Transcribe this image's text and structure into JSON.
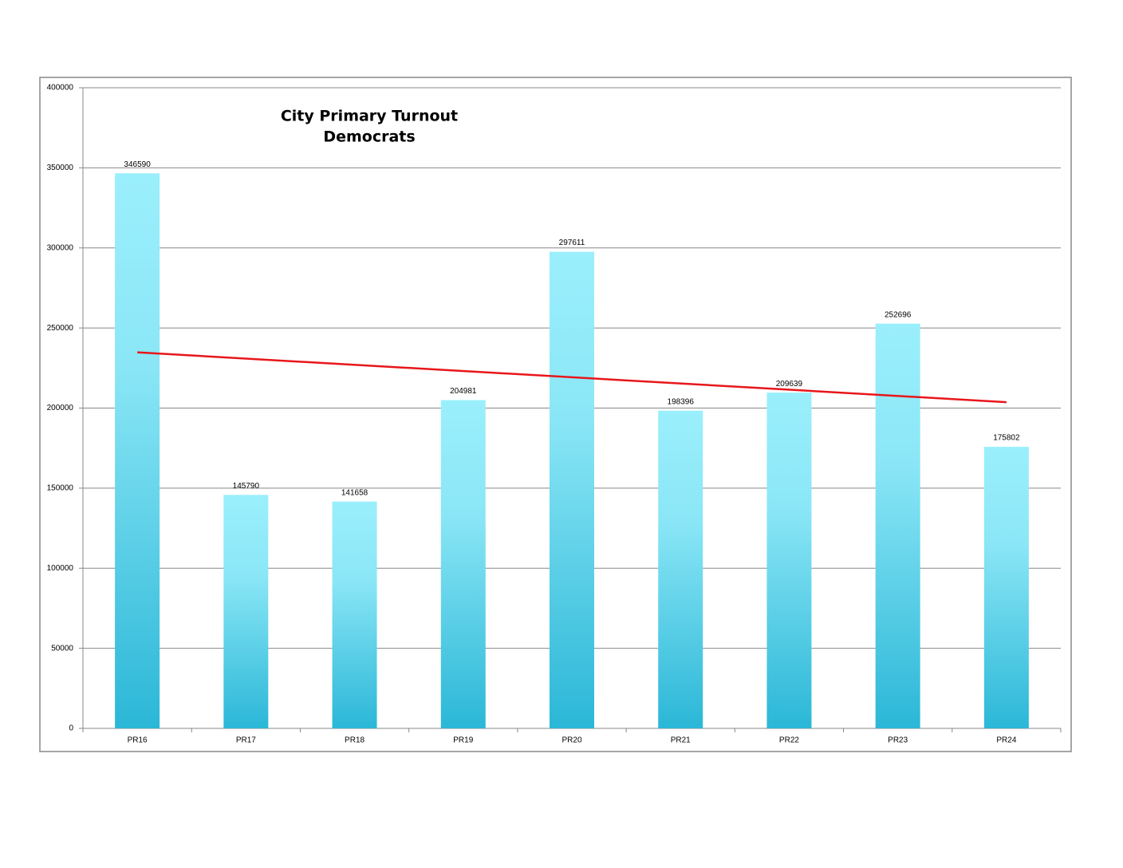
{
  "chart_data": {
    "type": "bar",
    "title": "City Primary Turnout",
    "subtitle": "Democrats",
    "categories": [
      "PR16",
      "PR17",
      "PR18",
      "PR19",
      "PR20",
      "PR21",
      "PR22",
      "PR23",
      "PR24"
    ],
    "values": [
      346590,
      145790,
      141658,
      204981,
      297611,
      198396,
      209639,
      252696,
      175802
    ],
    "color": "#2bb7d7",
    "trendline": true,
    "trendline_color": "#e8161b",
    "ylim": [
      0,
      400000
    ],
    "yticks": [
      0,
      50000,
      100000,
      150000,
      200000,
      250000,
      300000,
      350000,
      400000
    ],
    "grid": true,
    "data_labels": true
  }
}
